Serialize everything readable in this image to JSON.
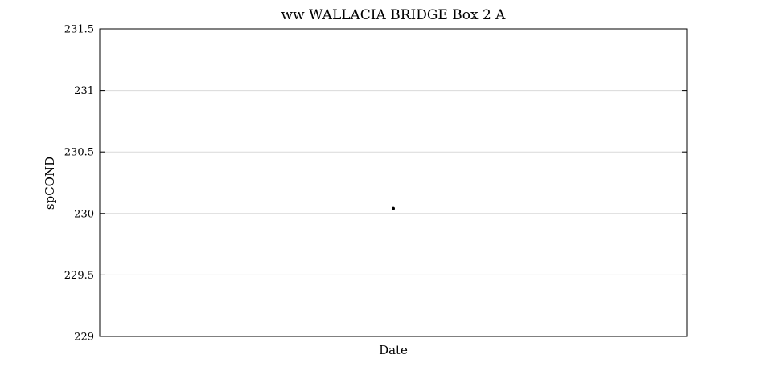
{
  "chart_data": {
    "type": "scatter",
    "title": "ww WALLACIA BRIDGE Box 2 A",
    "xlabel": "Date",
    "ylabel": "spCOND",
    "ylim": [
      229,
      231.5
    ],
    "yticks": [
      229,
      229.5,
      230,
      230.5,
      231,
      231.5
    ],
    "ytick_labels": [
      "229",
      "229.5",
      "230",
      "230.5",
      "231",
      "231.5"
    ],
    "grid": true,
    "series": [
      {
        "values": [
          230.04
        ],
        "x_position": "center"
      }
    ],
    "marker_color": "#000000",
    "grid_color": "#d9d9d9"
  }
}
